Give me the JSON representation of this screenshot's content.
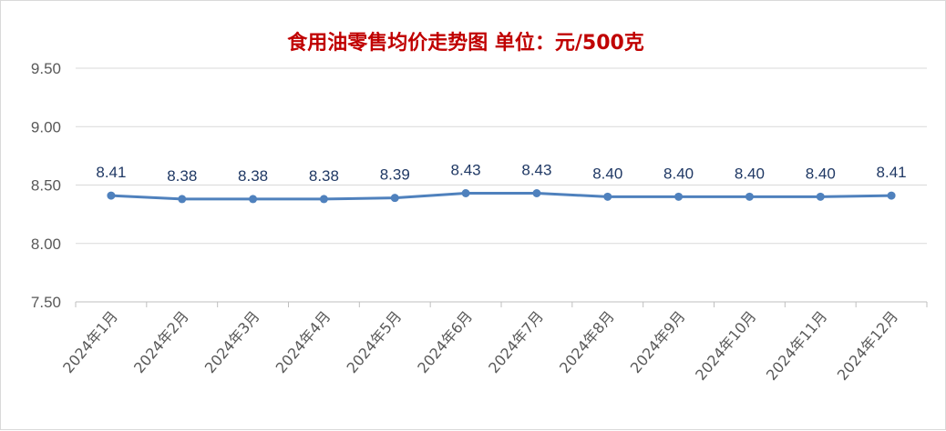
{
  "chart_data": {
    "type": "line",
    "title": "食用油零售均价走势图    单位：元/500克",
    "categories": [
      "2024年1月",
      "2024年2月",
      "2024年3月",
      "2024年4月",
      "2024年5月",
      "2024年6月",
      "2024年7月",
      "2024年8月",
      "2024年9月",
      "2024年10月",
      "2024年11月",
      "2024年12月"
    ],
    "series": [
      {
        "values": [
          8.41,
          8.38,
          8.38,
          8.38,
          8.39,
          8.43,
          8.43,
          8.4,
          8.4,
          8.4,
          8.4,
          8.41
        ],
        "data_labels": [
          "8.41",
          "8.38",
          "8.38",
          "8.38",
          "8.39",
          "8.43",
          "8.43",
          "8.40",
          "8.40",
          "8.40",
          "8.40",
          "8.41"
        ]
      }
    ],
    "ylim": [
      7.5,
      9.5
    ],
    "yticks": [
      "7.50",
      "8.00",
      "8.50",
      "9.00",
      "9.50"
    ],
    "xlabel": "",
    "ylabel": "",
    "grid": "horizontal",
    "legend": "none"
  },
  "colors": {
    "title": "#c00000",
    "line": "#4f81bd",
    "data_label": "#1f3864",
    "gridline": "#d9d9d9",
    "axis_text": "#595959"
  }
}
